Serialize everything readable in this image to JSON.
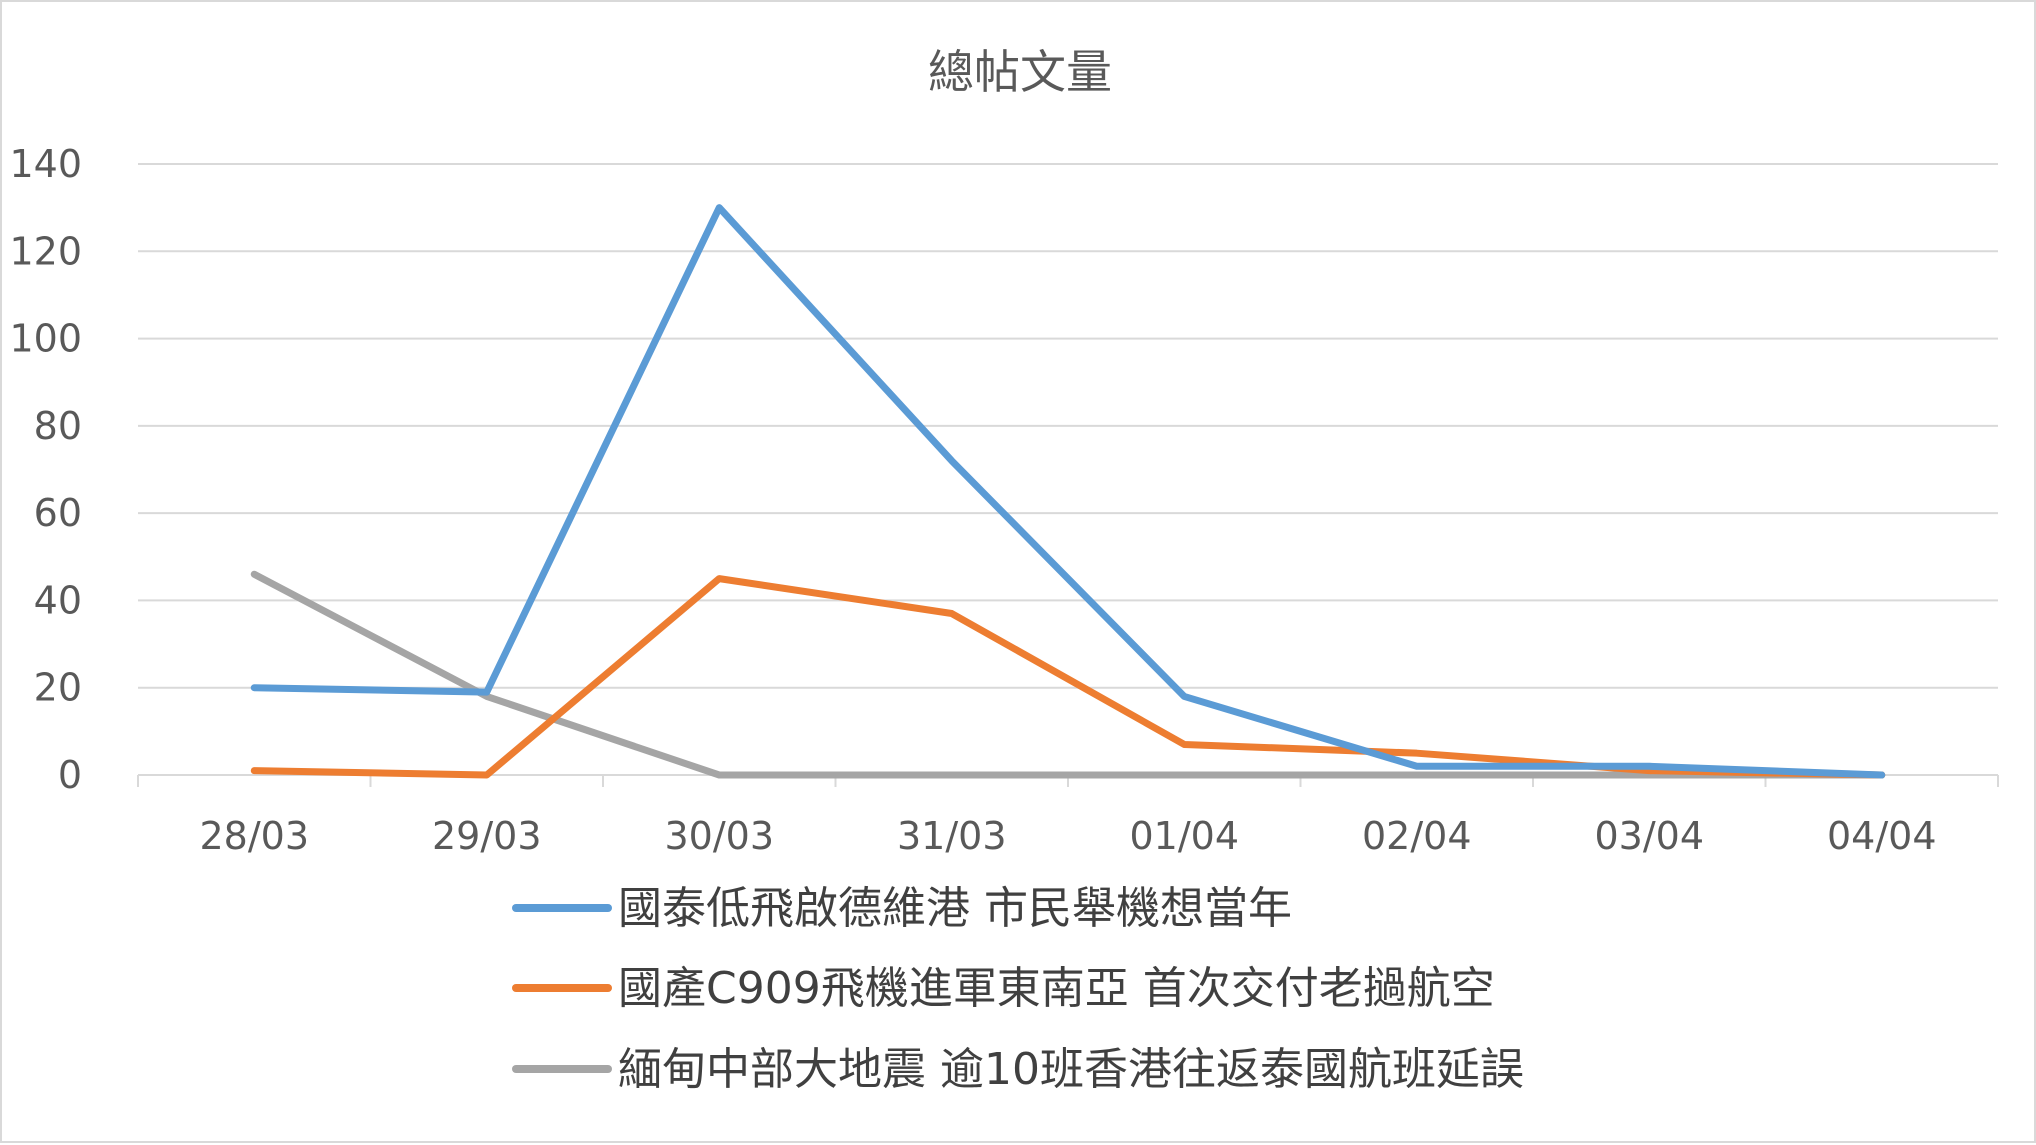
{
  "chart_data": {
    "type": "line",
    "title": "總帖文量",
    "xlabel": "",
    "ylabel": "",
    "categories": [
      "28/03",
      "29/03",
      "30/03",
      "31/03",
      "01/04",
      "02/04",
      "03/04",
      "04/04"
    ],
    "ylim": [
      0,
      140
    ],
    "yticks": [
      0,
      20,
      40,
      60,
      80,
      100,
      120,
      140
    ],
    "grid": true,
    "legend_position": "bottom",
    "series": [
      {
        "name": "國泰低飛啟德維港 市民舉機想當年",
        "color": "#5b9bd5",
        "values": [
          20,
          19,
          130,
          72,
          18,
          2,
          2,
          0
        ]
      },
      {
        "name": "國產C909飛機進軍東南亞 首次交付老撾航空",
        "color": "#ed7d31",
        "values": [
          1,
          0,
          45,
          37,
          7,
          5,
          1,
          0
        ]
      },
      {
        "name": "緬甸中部大地震 逾10班香港往返泰國航班延誤",
        "color": "#a5a5a5",
        "values": [
          46,
          18,
          0,
          0,
          0,
          0,
          0,
          0
        ]
      }
    ]
  }
}
